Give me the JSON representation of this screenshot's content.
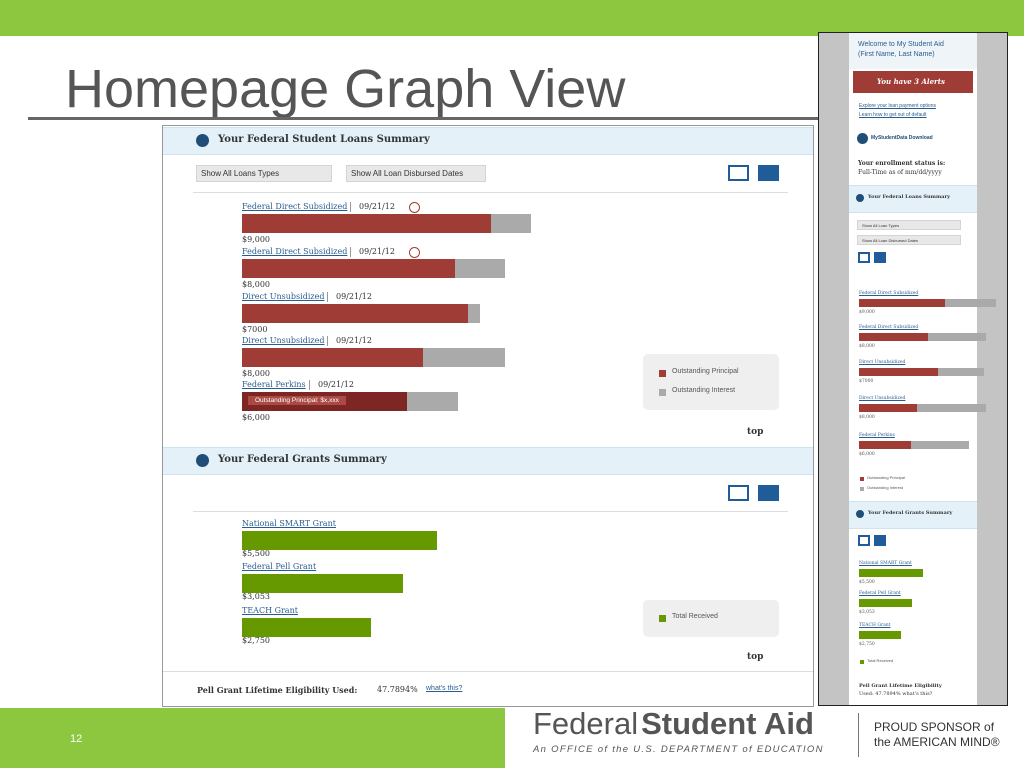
{
  "slide": {
    "title": "Homepage Graph View",
    "page_number": "12"
  },
  "loans_summary": {
    "title": "Your Federal Student Loans Summary",
    "filters": [
      "Show All Loans Types",
      "Show All Loan Disbursed Dates"
    ],
    "loans": [
      {
        "name": "Federal Direct Subsidized",
        "date": "09/21/12",
        "amount": "$9,000"
      },
      {
        "name": "Federal Direct Subsidized",
        "date": "09/21/12",
        "amount": "$8,000"
      },
      {
        "name": "Direct Unsubsidized",
        "date": "09/21/12",
        "amount": "$7000"
      },
      {
        "name": "Direct Unsubsidized",
        "date": "09/21/12",
        "amount": "$8,000"
      },
      {
        "name": "Federal Perkins",
        "date": "09/21/12",
        "amount": "$6,000"
      }
    ],
    "tooltip": "Outstanding Principal: $x,xxx",
    "legend": [
      "Outstanding Principal",
      "Outstanding Interest"
    ],
    "top": "top"
  },
  "grants_summary": {
    "title": "Your Federal Grants Summary",
    "grants": [
      {
        "name": "National SMART Grant",
        "amount": "$5,500"
      },
      {
        "name": "Federal Pell Grant",
        "amount": "$3,053"
      },
      {
        "name": "TEACH Grant",
        "amount": "$2,750"
      }
    ],
    "legend": [
      "Total Received"
    ],
    "top": "top"
  },
  "pell": {
    "label": "Pell Grant Lifetime Eligibility Used:",
    "value": "47.7894%",
    "link": "what's this?"
  },
  "sidebar": {
    "welcome": "Welcome to My Student Aid",
    "user": "(First Name, Last Name)",
    "alerts": "You have 3 Alerts",
    "links": [
      "Explore your loan payment options",
      "Learn how to get out of default"
    ],
    "download": "MyStudentData Download",
    "enrollment": "Your enrollment status is:",
    "enrollment_value": "Full-Time as of mm/dd/yyyy",
    "loans_title": "Your Federal Loans Summary",
    "filters": [
      "Show All Loan Types",
      "Show All Loan Disbursed Dates"
    ],
    "grants_title": "Your Federal Grants Summary",
    "pell": "Pell Grant Lifetime Eligibility",
    "pell_value": "Used: 47.7894%  what's this?"
  },
  "footer": {
    "logo_light": "Federal",
    "logo_bold": "Student Aid",
    "tagline": "An OFFICE of the U.S. DEPARTMENT of EDUCATION",
    "sponsor_1": "PROUD SPONSOR of",
    "sponsor_2": "the AMERICAN MIND®"
  }
}
